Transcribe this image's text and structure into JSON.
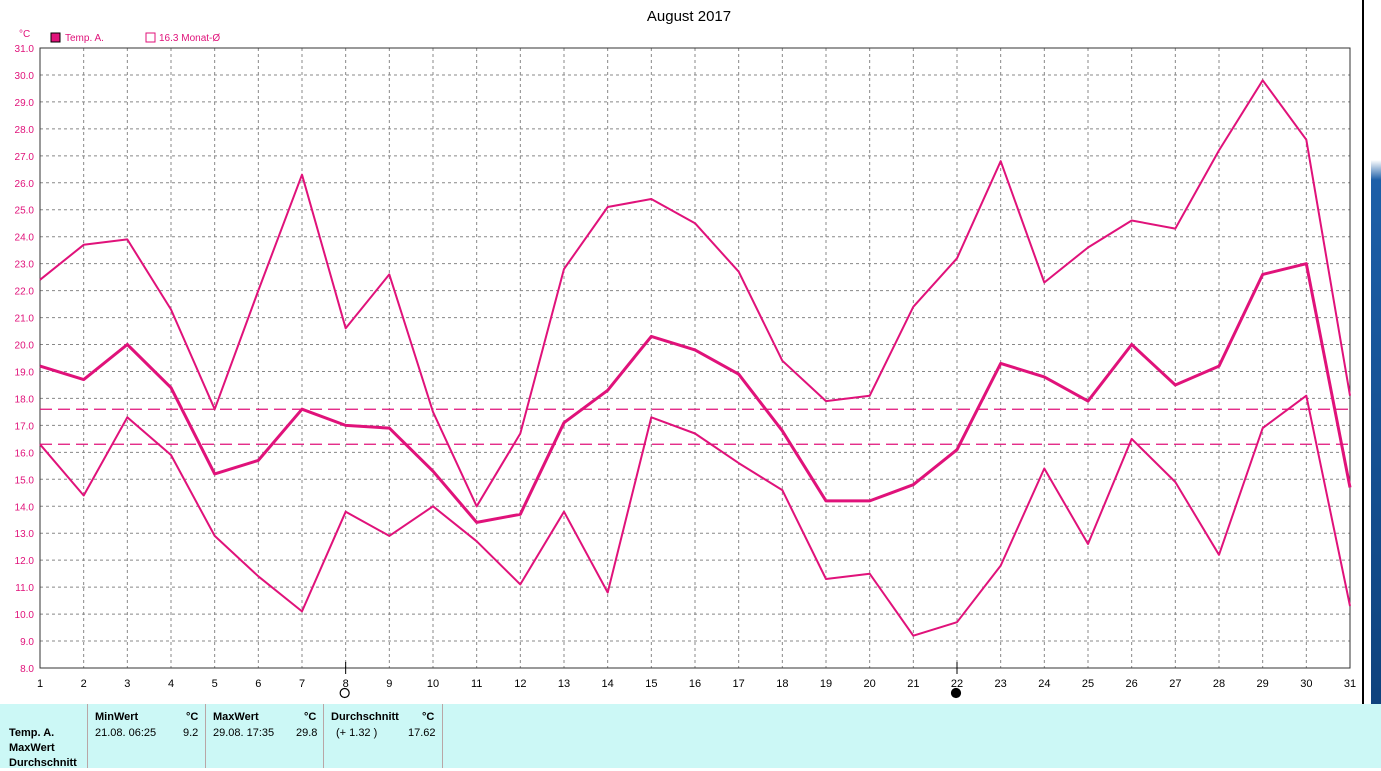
{
  "title": "August 2017",
  "y_unit": "°C",
  "legend": {
    "series_label": "Temp. A.",
    "monthly_avg_label": "16.3 Monat-Ø"
  },
  "colors": {
    "series": "#e0127a",
    "grid": "#888888",
    "panel": "#ccf8f6"
  },
  "moon_icons": [
    {
      "name": "full-moon-icon",
      "day": 8
    },
    {
      "name": "new-moon-icon",
      "day": 22
    }
  ],
  "chart_data": {
    "type": "line",
    "title": "August 2017",
    "ylabel": "°C",
    "x": [
      1,
      2,
      3,
      4,
      5,
      6,
      7,
      8,
      9,
      10,
      11,
      12,
      13,
      14,
      15,
      16,
      17,
      18,
      19,
      20,
      21,
      22,
      23,
      24,
      25,
      26,
      27,
      28,
      29,
      30,
      31
    ],
    "ylim": [
      8.0,
      31.0
    ],
    "yticks": [
      "8.0",
      "9.0",
      "10.0",
      "11.0",
      "12.0",
      "13.0",
      "14.0",
      "15.0",
      "16.0",
      "17.0",
      "18.0",
      "19.0",
      "20.0",
      "21.0",
      "22.0",
      "23.0",
      "24.0",
      "25.0",
      "26.0",
      "27.0",
      "28.0",
      "29.0",
      "30.0",
      "31.0"
    ],
    "grid": true,
    "legend_position": "top-left",
    "series": [
      {
        "name": "Temp. A.",
        "values": [
          19.2,
          18.7,
          20.0,
          18.4,
          15.2,
          15.7,
          17.6,
          17.0,
          16.9,
          15.3,
          13.4,
          13.7,
          17.1,
          18.3,
          20.3,
          19.8,
          18.9,
          16.8,
          14.2,
          14.2,
          14.8,
          16.1,
          19.3,
          18.8,
          17.9,
          20.0,
          18.5,
          19.2,
          22.6,
          23.0,
          14.7
        ]
      },
      {
        "values": [
          22.4,
          23.7,
          23.9,
          21.3,
          17.6,
          22.0,
          26.3,
          20.6,
          22.6,
          17.5,
          14.0,
          16.7,
          22.8,
          25.1,
          25.4,
          24.5,
          22.7,
          19.4,
          17.9,
          18.1,
          21.4,
          23.2,
          26.8,
          22.3,
          23.6,
          24.6,
          24.3,
          27.2,
          29.8,
          27.6,
          18.1
        ]
      },
      {
        "values": [
          16.3,
          14.4,
          17.3,
          15.9,
          12.9,
          11.4,
          10.1,
          13.8,
          12.9,
          14.0,
          12.7,
          11.1,
          13.8,
          10.8,
          17.3,
          16.7,
          15.6,
          14.6,
          11.3,
          11.5,
          9.2,
          9.7,
          11.8,
          15.4,
          12.6,
          16.5,
          14.9,
          12.2,
          16.9,
          18.1,
          10.3
        ]
      }
    ],
    "reference_lines": [
      {
        "value": 17.6
      },
      {
        "value": 16.3
      }
    ]
  },
  "stats": {
    "row_labels": [
      "Temp. A.",
      "MaxWert",
      "Durchschnitt"
    ],
    "min": {
      "header": "MinWert",
      "unit": "°C",
      "date": "21.08.  06:25",
      "value": "9.2"
    },
    "max": {
      "header": "MaxWert",
      "unit": "°C",
      "date": "29.08.  17:35",
      "value": "29.8"
    },
    "avg": {
      "header": "Durchschnitt",
      "unit": "°C",
      "delta": "(+ 1.32 )",
      "value": "17.62"
    }
  }
}
